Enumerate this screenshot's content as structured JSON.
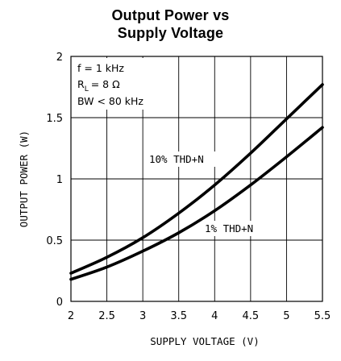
{
  "chart_data": {
    "type": "line",
    "title": [
      "Output Power vs",
      "Supply Voltage"
    ],
    "xlabel": "SUPPLY VOLTAGE (V)",
    "ylabel": "OUTPUT POWER (W)",
    "xlim": [
      2,
      5.5
    ],
    "ylim": [
      0,
      2
    ],
    "xticks": [
      "2",
      "2.5",
      "3",
      "3.5",
      "4",
      "4.5",
      "5",
      "5.5"
    ],
    "yticks": [
      "0",
      "0.5",
      "1",
      "1.5",
      "2"
    ],
    "grid": true,
    "annotations": [
      "f = 1 kHz",
      "R",
      "L",
      "= 8 Ω",
      "BW < 80 kHz"
    ],
    "series": [
      {
        "name": "10% THD+N",
        "color": "#000000",
        "x": [
          2.0,
          2.5,
          3.0,
          3.5,
          4.0,
          4.5,
          5.0,
          5.5
        ],
        "y": [
          0.23,
          0.36,
          0.52,
          0.72,
          0.95,
          1.21,
          1.49,
          1.77
        ]
      },
      {
        "name": "1% THD+N",
        "color": "#000000",
        "x": [
          2.0,
          2.5,
          3.0,
          3.5,
          4.0,
          4.5,
          5.0,
          5.5
        ],
        "y": [
          0.18,
          0.28,
          0.41,
          0.56,
          0.74,
          0.95,
          1.18,
          1.42
        ]
      }
    ]
  }
}
